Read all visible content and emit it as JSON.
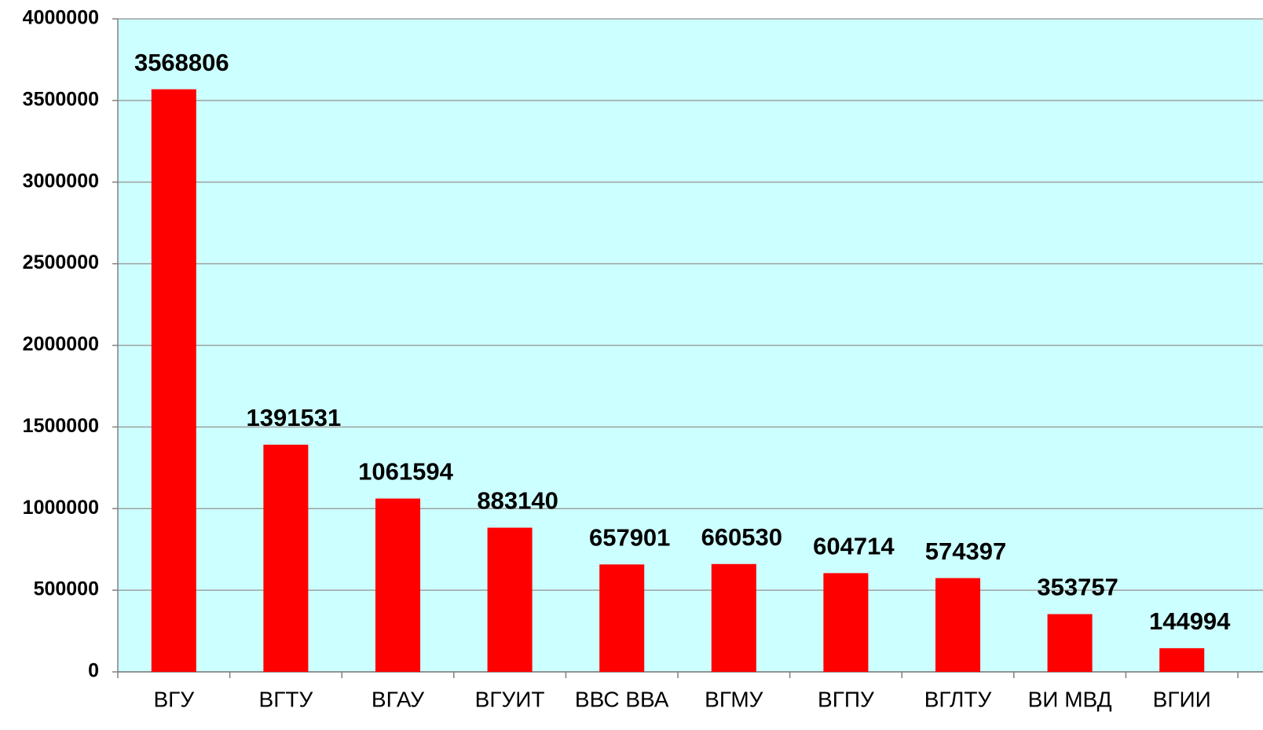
{
  "chart_data": {
    "type": "bar",
    "categories": [
      "ВГУ",
      "ВГТУ",
      "ВГАУ",
      "ВГУИТ",
      "ВВС ВВА",
      "ВГМУ",
      "ВГПУ",
      "ВГЛТУ",
      "ВИ МВД",
      "ВГИИ"
    ],
    "values": [
      3568806,
      1391531,
      1061594,
      883140,
      657901,
      660530,
      604714,
      574397,
      353757,
      144994
    ],
    "color": "#ff0000",
    "ylim": [
      0,
      4000000
    ],
    "yticks": [
      0,
      500000,
      1000000,
      1500000,
      2000000,
      2500000,
      3000000,
      3500000,
      4000000
    ],
    "grid": true
  }
}
